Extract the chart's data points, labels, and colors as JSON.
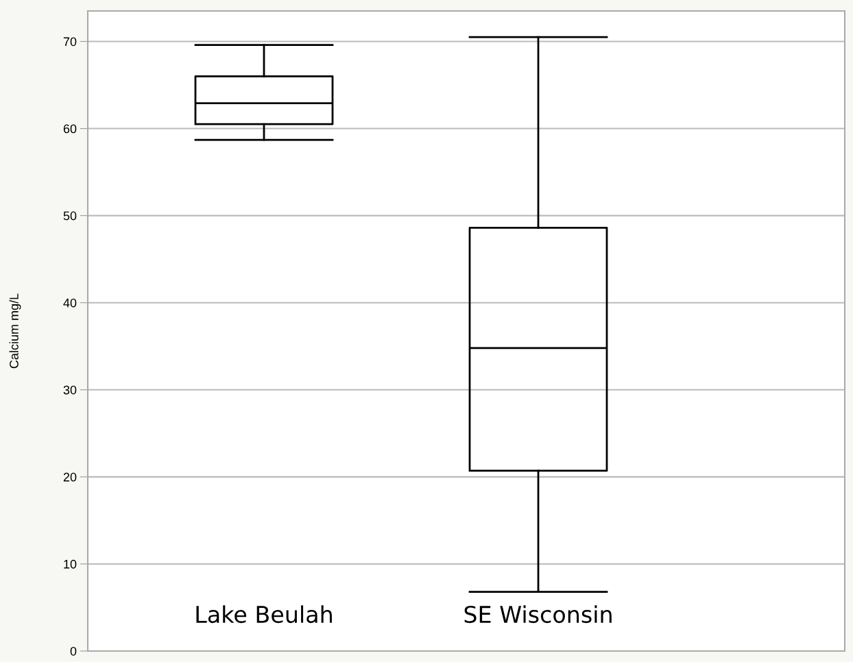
{
  "chart_data": {
    "type": "box",
    "ylabel": "Calcium mg/L",
    "categories": [
      "Lake Beulah",
      "SE Wisconsin"
    ],
    "boxes": [
      {
        "low": 58.7,
        "q1": 60.5,
        "median": 62.9,
        "q3": 66.0,
        "high": 69.6
      },
      {
        "low": 6.8,
        "q1": 20.7,
        "median": 34.8,
        "q3": 48.6,
        "high": 70.5
      }
    ],
    "ylim": [
      0,
      73.5
    ],
    "yticks": [
      0,
      10,
      20,
      30,
      40,
      50,
      60,
      70
    ],
    "grid": "y",
    "color": "#000000"
  }
}
